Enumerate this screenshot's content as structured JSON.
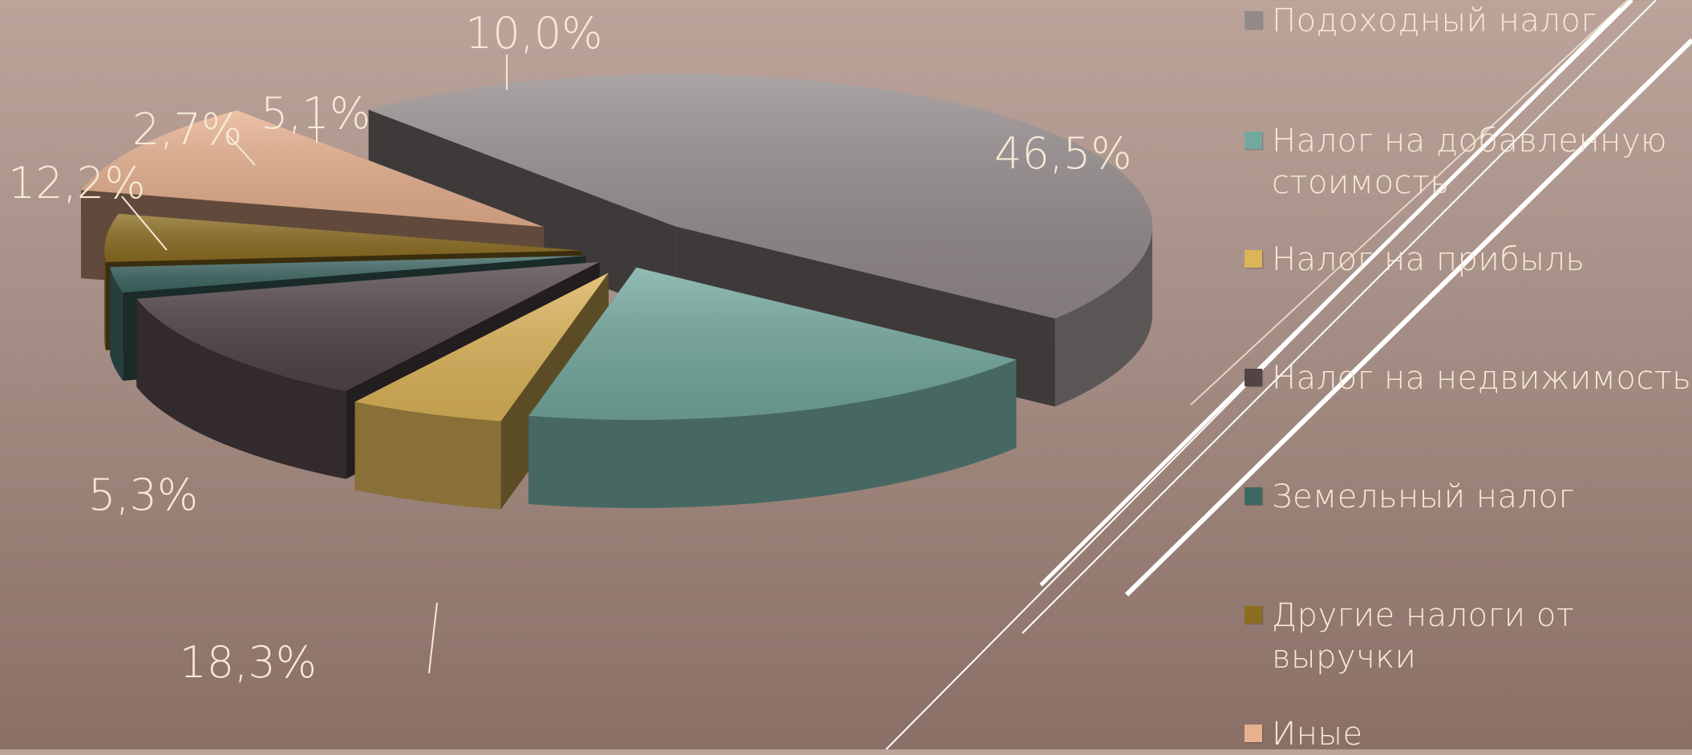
{
  "chart_data": {
    "type": "pie",
    "title": "",
    "labels": [
      "Подоходный налог",
      "Налог на добавленную стоимость",
      "Налог на прибыль",
      "Налог на недвижимость",
      "Земельный налог",
      "Другие налоги от выручки",
      "Иные"
    ],
    "values": [
      46.5,
      18.3,
      5.3,
      12.2,
      2.7,
      5.1,
      10.0
    ],
    "value_labels": [
      "46,5%",
      "18,3%",
      "5,3%",
      "12,2%",
      "2,7%",
      "5,1%",
      "10,0%"
    ],
    "colors": [
      "#938a8b",
      "#73a89e",
      "#dcb45a",
      "#504447",
      "#3e6662",
      "#8c6d22",
      "#e7b08e"
    ],
    "legend_position": "right",
    "style": "3d exploded pie"
  }
}
